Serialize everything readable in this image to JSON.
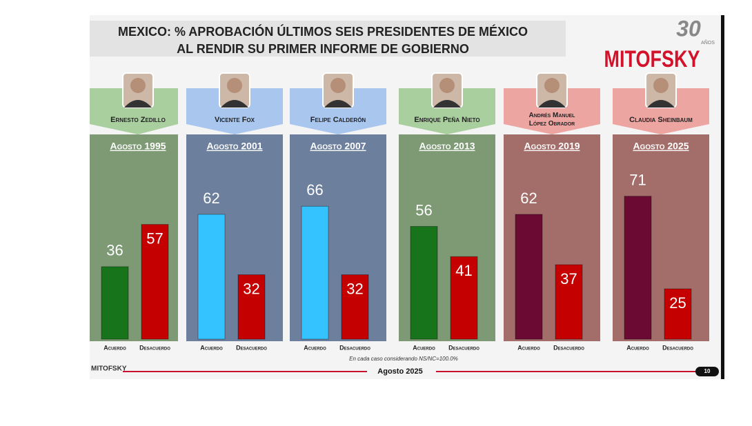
{
  "chart_data": {
    "type": "bar",
    "title": "MEXICO: % APROBACIÓN ÚLTIMOS SEIS PRESIDENTES DE MÉXICO",
    "subtitle": "AL RENDIR SU PRIMER INFORME DE GOBIERNO",
    "brand": "MITOFSKY",
    "anniversary": "30",
    "anniversary_unit": "AÑOS",
    "categories": [
      "Ernesto Zedillo",
      "Vicente Fox",
      "Felipe Calderón",
      "Enrique Peña Nieto",
      "Andrés Manuel López Obrador",
      "Claudia Sheinbaum"
    ],
    "periods": [
      "Agosto 1995",
      "Agosto 2001",
      "Agosto 2007",
      "Agosto 2013",
      "Agosto 2019",
      "Agosto 2025"
    ],
    "panel_colors": [
      "#7d9a74",
      "#6c7f9d",
      "#6c7f9d",
      "#7d9a74",
      "#a36e6a",
      "#a36e6a"
    ],
    "header_colors": [
      "#a9cf9f",
      "#a9c6ef",
      "#a9c6ef",
      "#a9cf9f",
      "#eda5a2",
      "#eda5a2"
    ],
    "series": [
      {
        "name": "Acuerdo",
        "colors": [
          "#17741a",
          "#35c3ff",
          "#35c3ff",
          "#17741a",
          "#6b0a32",
          "#6b0a32"
        ],
        "values": [
          36,
          62,
          66,
          56,
          62,
          71
        ]
      },
      {
        "name": "Desacuerdo",
        "color": "#c40000",
        "values": [
          57,
          32,
          32,
          41,
          37,
          25
        ]
      }
    ],
    "note": "En cada caso considerando NS/NC=100.0%",
    "footer": "Agosto 2025",
    "footer_brand": "MITOFSKY",
    "page": "10"
  }
}
